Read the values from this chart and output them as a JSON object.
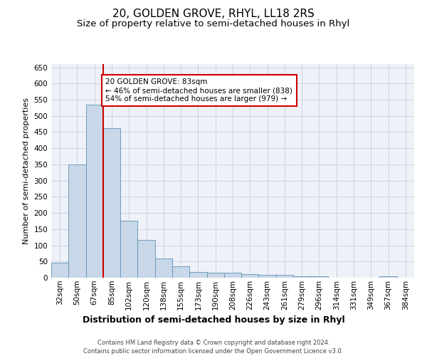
{
  "title": "20, GOLDEN GROVE, RHYL, LL18 2RS",
  "subtitle": "Size of property relative to semi-detached houses in Rhyl",
  "xlabel": "Distribution of semi-detached houses by size in Rhyl",
  "ylabel": "Number of semi-detached properties",
  "categories": [
    "32sqm",
    "50sqm",
    "67sqm",
    "85sqm",
    "102sqm",
    "120sqm",
    "138sqm",
    "155sqm",
    "173sqm",
    "190sqm",
    "208sqm",
    "226sqm",
    "243sqm",
    "261sqm",
    "279sqm",
    "296sqm",
    "314sqm",
    "331sqm",
    "349sqm",
    "367sqm",
    "384sqm"
  ],
  "values": [
    46,
    349,
    535,
    463,
    175,
    116,
    59,
    35,
    18,
    15,
    15,
    10,
    9,
    8,
    5,
    5,
    0,
    0,
    0,
    5,
    0
  ],
  "bar_color": "#c8d8e8",
  "bar_edge_color": "#6090b8",
  "property_label": "20 GOLDEN GROVE: 83sqm",
  "pct_smaller": 46,
  "pct_smaller_count": 838,
  "pct_larger": 54,
  "pct_larger_count": 979,
  "vline_x_index": 2.5,
  "ylim": [
    0,
    660
  ],
  "yticks": [
    0,
    50,
    100,
    150,
    200,
    250,
    300,
    350,
    400,
    450,
    500,
    550,
    600,
    650
  ],
  "background_color": "#eef2f8",
  "grid_color": "#c5cfe0",
  "annotation_box_color": "#ffffff",
  "annotation_box_edge": "#cc0000",
  "vline_color": "#cc0000",
  "title_fontsize": 11,
  "subtitle_fontsize": 9.5,
  "xlabel_fontsize": 9,
  "ylabel_fontsize": 8,
  "tick_fontsize": 7.5,
  "footer_line1": "Contains HM Land Registry data © Crown copyright and database right 2024.",
  "footer_line2": "Contains public sector information licensed under the Open Government Licence v3.0."
}
